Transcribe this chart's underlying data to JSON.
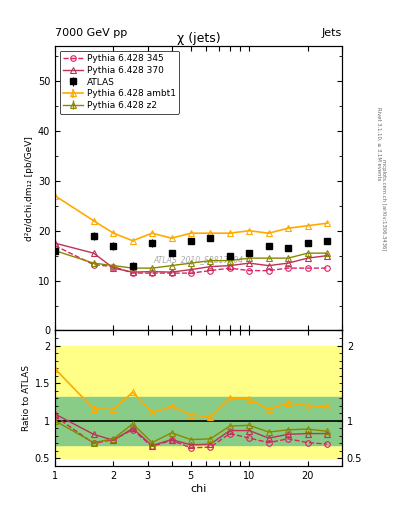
{
  "title_main": "χ (jets)",
  "header_left": "7000 GeV pp",
  "header_right": "Jets",
  "right_label": "Rivet 3.1.10, ≥ 3.1M events",
  "right_label2": "[arXiv:1306.3436]",
  "watermark": "ATLAS_2010_S8817804",
  "xlabel": "chi",
  "ylabel_main": "d²σ/dchi,dm₁₂ [pb/GeV]",
  "ylabel_ratio": "Ratio to ATLAS",
  "chi_values": [
    1.0,
    1.58,
    2.0,
    2.51,
    3.16,
    3.98,
    5.01,
    6.31,
    7.94,
    10.0,
    12.59,
    15.85,
    20.0,
    25.12
  ],
  "atlas_y": [
    16.0,
    19.0,
    17.0,
    13.0,
    17.5,
    15.5,
    18.0,
    18.5,
    15.0,
    15.5,
    17.0,
    16.5,
    17.5,
    18.0
  ],
  "atlas_yerr": [
    0.8,
    0.8,
    0.8,
    0.8,
    0.8,
    0.6,
    0.6,
    0.6,
    0.6,
    0.6,
    0.6,
    0.6,
    0.6,
    0.6
  ],
  "pythia345_y": [
    17.0,
    13.2,
    12.8,
    11.5,
    11.5,
    11.5,
    11.5,
    12.0,
    12.5,
    12.0,
    12.0,
    12.5,
    12.5,
    12.5
  ],
  "pythia370_y": [
    17.5,
    15.5,
    12.5,
    11.7,
    11.8,
    11.7,
    12.2,
    12.8,
    13.0,
    13.5,
    13.0,
    13.5,
    14.5,
    15.0
  ],
  "pythia_ambt1_y": [
    27.0,
    22.0,
    19.5,
    18.0,
    19.5,
    18.5,
    19.5,
    19.5,
    19.5,
    20.0,
    19.5,
    20.5,
    21.0,
    21.5
  ],
  "pythia_ambt1_yerr": [
    0.5,
    0.3,
    0.2,
    0.2,
    0.15,
    0.15,
    0.15,
    0.15,
    0.15,
    0.15,
    0.15,
    0.15,
    0.15,
    0.15
  ],
  "pythia_z2_y": [
    16.0,
    13.5,
    13.0,
    12.5,
    12.5,
    13.0,
    13.5,
    14.0,
    14.0,
    14.5,
    14.5,
    14.5,
    15.5,
    15.5
  ],
  "pythia_z2_yerr": [
    0.25,
    0.15,
    0.12,
    0.1,
    0.1,
    0.1,
    0.1,
    0.1,
    0.1,
    0.1,
    0.1,
    0.1,
    0.1,
    0.1
  ],
  "ratio345_y": [
    1.06,
    0.7,
    0.75,
    0.88,
    0.66,
    0.74,
    0.64,
    0.65,
    0.83,
    0.77,
    0.71,
    0.76,
    0.71,
    0.69
  ],
  "ratio370_y": [
    1.09,
    0.82,
    0.74,
    0.9,
    0.67,
    0.75,
    0.68,
    0.69,
    0.87,
    0.87,
    0.77,
    0.82,
    0.83,
    0.83
  ],
  "ratio_ambt1_y": [
    1.69,
    1.16,
    1.15,
    1.38,
    1.11,
    1.19,
    1.08,
    1.05,
    1.3,
    1.29,
    1.15,
    1.24,
    1.2,
    1.19
  ],
  "ratio_z2_y": [
    1.0,
    0.71,
    0.76,
    0.96,
    0.71,
    0.84,
    0.75,
    0.76,
    0.93,
    0.94,
    0.85,
    0.88,
    0.89,
    0.86
  ],
  "color_atlas": "#000000",
  "color_345": "#dd2266",
  "color_370": "#bb3355",
  "color_ambt1": "#ffaa00",
  "color_z2": "#888800",
  "ylim_main": [
    0,
    57
  ],
  "ylim_ratio": [
    0.4,
    2.2
  ],
  "yticks_main": [
    0,
    10,
    20,
    30,
    40,
    50
  ],
  "yticks_ratio": [
    0.5,
    1.0,
    1.5,
    2.0
  ]
}
